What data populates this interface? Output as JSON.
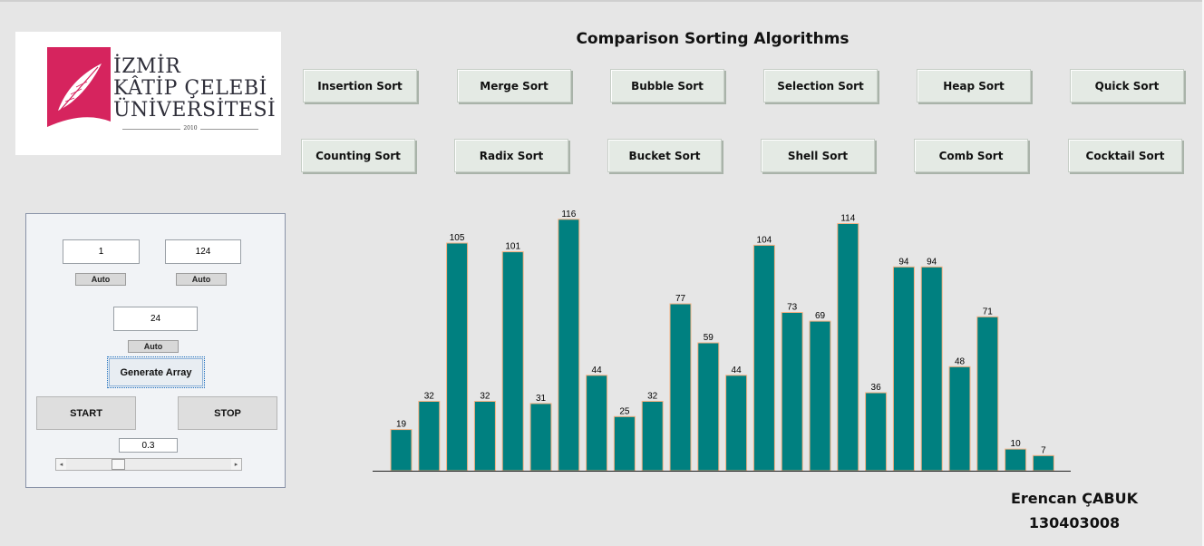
{
  "logo": {
    "line1": "İZMİR",
    "line2": "KÂTİP ÇELEBİ",
    "line3": "ÜNİVERSİTESİ",
    "year": "2010",
    "brand_color": "#d6245e"
  },
  "header": {
    "title": "Comparison Sorting Algorithms"
  },
  "algorithms": {
    "row1": [
      "Insertion Sort",
      "Merge Sort",
      "Bubble Sort",
      "Selection Sort",
      "Heap Sort",
      "Quick Sort"
    ],
    "row2": [
      "Counting Sort",
      "Radix Sort",
      "Bucket Sort",
      "Shell Sort",
      "Comb Sort",
      "Cocktail Sort"
    ]
  },
  "controls": {
    "min_value": "1",
    "max_value": "124",
    "size_value": "24",
    "auto_label": "Auto",
    "generate_label": "Generate Array",
    "start_label": "START",
    "stop_label": "STOP",
    "speed_value": "0.3",
    "slider_left_arrow": "◂",
    "slider_right_arrow": "▸",
    "speed_slider_position": 0.3
  },
  "chart_data": {
    "type": "bar",
    "values": [
      19,
      32,
      105,
      32,
      101,
      31,
      116,
      44,
      25,
      32,
      77,
      59,
      44,
      104,
      73,
      69,
      114,
      36,
      94,
      94,
      48,
      71,
      10,
      7
    ],
    "bar_color": "#008080",
    "bar_edge_color": "#f4b183"
  },
  "author": {
    "name": "Erencan ÇABUK",
    "id": "130403008"
  }
}
